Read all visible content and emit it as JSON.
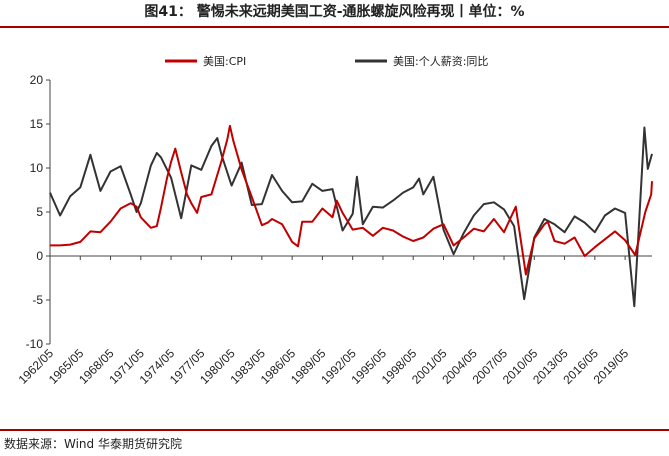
{
  "header": {
    "title": "图41： 警惕未来远期美国工资-通胀螺旋风险再现丨单位：%"
  },
  "footer": {
    "source": "数据来源：Wind  华泰期货研究院"
  },
  "colors": {
    "cpi": "#c00000",
    "wage": "#333333",
    "accent": "#a50000"
  },
  "chart_data": {
    "type": "line",
    "xlabel": "",
    "ylabel": "",
    "ylim": [
      -10,
      20
    ],
    "yticks": [
      -10,
      -5,
      0,
      5,
      10,
      15,
      20
    ],
    "xticks": [
      "1962/05",
      "1965/05",
      "1968/05",
      "1971/05",
      "1974/05",
      "1977/05",
      "1980/05",
      "1983/05",
      "1986/05",
      "1989/05",
      "1992/05",
      "1995/05",
      "1998/05",
      "2001/05",
      "2004/05",
      "2007/05",
      "2010/05",
      "2013/05",
      "2016/05",
      "2019/05"
    ],
    "xlim": [
      "1962/05",
      "2022/01"
    ],
    "legend_position": "top",
    "grid": false,
    "series": [
      {
        "name": "美国:CPI",
        "color": "#c00000",
        "points": [
          [
            "1962/05",
            1.2
          ],
          [
            "1963/05",
            1.2
          ],
          [
            "1964/05",
            1.3
          ],
          [
            "1965/05",
            1.6
          ],
          [
            "1966/05",
            2.8
          ],
          [
            "1967/05",
            2.7
          ],
          [
            "1968/05",
            3.9
          ],
          [
            "1969/05",
            5.4
          ],
          [
            "1970/05",
            6.0
          ],
          [
            "1970/12",
            5.6
          ],
          [
            "1971/05",
            4.4
          ],
          [
            "1972/05",
            3.2
          ],
          [
            "1972/12",
            3.4
          ],
          [
            "1973/05",
            5.5
          ],
          [
            "1973/12",
            8.8
          ],
          [
            "1974/05",
            10.7
          ],
          [
            "1974/10",
            12.2
          ],
          [
            "1975/05",
            9.5
          ],
          [
            "1975/12",
            7.0
          ],
          [
            "1976/05",
            6.0
          ],
          [
            "1976/12",
            4.9
          ],
          [
            "1977/05",
            6.7
          ],
          [
            "1978/05",
            7.0
          ],
          [
            "1979/05",
            10.8
          ],
          [
            "1979/12",
            13.3
          ],
          [
            "1980/03",
            14.8
          ],
          [
            "1980/07",
            13.1
          ],
          [
            "1981/05",
            9.8
          ],
          [
            "1982/05",
            6.7
          ],
          [
            "1983/05",
            3.5
          ],
          [
            "1983/12",
            3.8
          ],
          [
            "1984/05",
            4.2
          ],
          [
            "1985/05",
            3.6
          ],
          [
            "1986/05",
            1.6
          ],
          [
            "1986/12",
            1.1
          ],
          [
            "1987/05",
            3.9
          ],
          [
            "1988/05",
            3.9
          ],
          [
            "1989/05",
            5.4
          ],
          [
            "1990/05",
            4.4
          ],
          [
            "1990/10",
            6.3
          ],
          [
            "1991/05",
            4.9
          ],
          [
            "1992/05",
            3.0
          ],
          [
            "1993/05",
            3.2
          ],
          [
            "1994/05",
            2.3
          ],
          [
            "1995/05",
            3.2
          ],
          [
            "1996/05",
            2.9
          ],
          [
            "1997/05",
            2.2
          ],
          [
            "1998/05",
            1.7
          ],
          [
            "1999/05",
            2.1
          ],
          [
            "2000/05",
            3.1
          ],
          [
            "2001/05",
            3.6
          ],
          [
            "2002/05",
            1.2
          ],
          [
            "2003/05",
            2.1
          ],
          [
            "2004/05",
            3.1
          ],
          [
            "2005/05",
            2.8
          ],
          [
            "2006/05",
            4.2
          ],
          [
            "2007/05",
            2.7
          ],
          [
            "2008/07",
            5.6
          ],
          [
            "2009/07",
            -2.1
          ],
          [
            "2010/05",
            2.0
          ],
          [
            "2011/05",
            3.6
          ],
          [
            "2011/09",
            3.9
          ],
          [
            "2012/05",
            1.7
          ],
          [
            "2013/05",
            1.4
          ],
          [
            "2014/05",
            2.1
          ],
          [
            "2015/05",
            0.0
          ],
          [
            "2016/05",
            1.0
          ],
          [
            "2017/05",
            1.9
          ],
          [
            "2018/05",
            2.8
          ],
          [
            "2019/05",
            1.8
          ],
          [
            "2020/05",
            0.1
          ],
          [
            "2021/05",
            5.0
          ],
          [
            "2021/12",
            7.0
          ],
          [
            "2022/01",
            8.5
          ]
        ]
      },
      {
        "name": "美国:个人薪资:同比",
        "color": "#333333",
        "points": [
          [
            "1962/05",
            7.2
          ],
          [
            "1963/05",
            4.6
          ],
          [
            "1964/05",
            6.8
          ],
          [
            "1965/05",
            7.8
          ],
          [
            "1966/05",
            11.5
          ],
          [
            "1967/05",
            7.4
          ],
          [
            "1968/05",
            9.6
          ],
          [
            "1969/05",
            10.2
          ],
          [
            "1970/05",
            7.0
          ],
          [
            "1970/12",
            5.0
          ],
          [
            "1971/05",
            6.0
          ],
          [
            "1972/05",
            10.3
          ],
          [
            "1972/12",
            11.7
          ],
          [
            "1973/05",
            11.2
          ],
          [
            "1974/05",
            8.9
          ],
          [
            "1975/05",
            4.3
          ],
          [
            "1976/05",
            10.3
          ],
          [
            "1977/05",
            9.8
          ],
          [
            "1978/05",
            12.5
          ],
          [
            "1978/12",
            13.4
          ],
          [
            "1979/05",
            11.5
          ],
          [
            "1980/05",
            8.0
          ],
          [
            "1981/05",
            10.6
          ],
          [
            "1982/05",
            5.8
          ],
          [
            "1983/05",
            5.9
          ],
          [
            "1984/05",
            9.2
          ],
          [
            "1985/05",
            7.4
          ],
          [
            "1986/05",
            6.1
          ],
          [
            "1987/05",
            6.2
          ],
          [
            "1988/05",
            8.2
          ],
          [
            "1989/05",
            7.4
          ],
          [
            "1990/05",
            7.6
          ],
          [
            "1991/05",
            2.9
          ],
          [
            "1992/05",
            4.8
          ],
          [
            "1992/10",
            9.0
          ],
          [
            "1993/05",
            3.6
          ],
          [
            "1994/05",
            5.6
          ],
          [
            "1995/05",
            5.5
          ],
          [
            "1996/05",
            6.3
          ],
          [
            "1997/05",
            7.2
          ],
          [
            "1998/05",
            7.8
          ],
          [
            "1998/12",
            8.8
          ],
          [
            "1999/05",
            7.0
          ],
          [
            "2000/05",
            9.0
          ],
          [
            "2001/05",
            3.0
          ],
          [
            "2002/05",
            0.2
          ],
          [
            "2003/05",
            2.6
          ],
          [
            "2004/05",
            4.6
          ],
          [
            "2005/05",
            5.9
          ],
          [
            "2006/05",
            6.1
          ],
          [
            "2007/05",
            5.3
          ],
          [
            "2008/05",
            3.4
          ],
          [
            "2009/05",
            -4.9
          ],
          [
            "2010/05",
            2.1
          ],
          [
            "2011/05",
            4.2
          ],
          [
            "2012/05",
            3.6
          ],
          [
            "2013/05",
            2.7
          ],
          [
            "2014/05",
            4.5
          ],
          [
            "2015/05",
            3.8
          ],
          [
            "2016/05",
            2.7
          ],
          [
            "2017/05",
            4.6
          ],
          [
            "2018/05",
            5.4
          ],
          [
            "2019/05",
            4.9
          ],
          [
            "2020/04",
            -5.7
          ],
          [
            "2020/08",
            1.0
          ],
          [
            "2021/04",
            14.6
          ],
          [
            "2021/08",
            9.9
          ],
          [
            "2022/01",
            11.6
          ]
        ]
      }
    ]
  }
}
